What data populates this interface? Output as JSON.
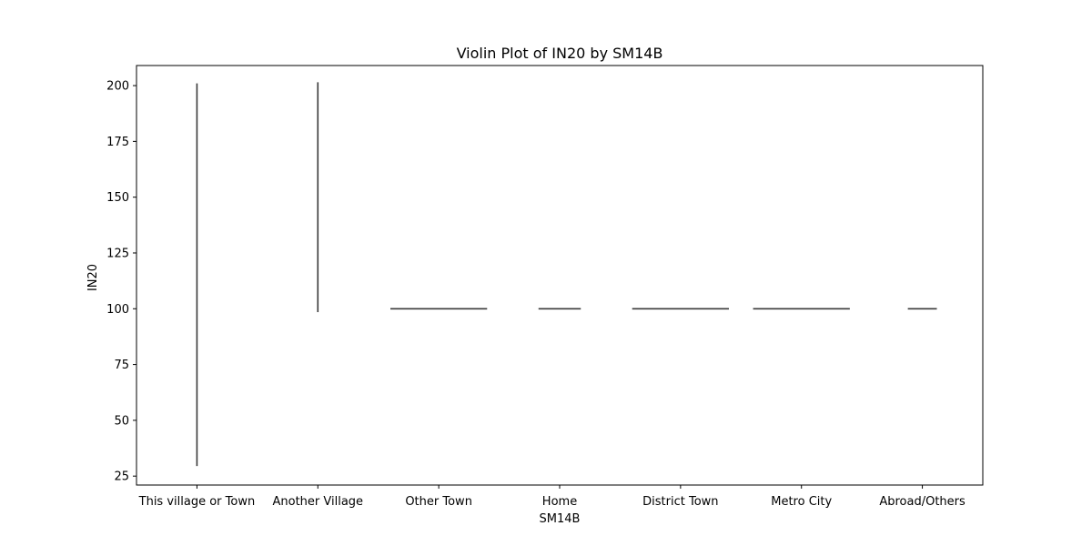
{
  "chart_data": {
    "type": "violin",
    "title": "Violin Plot of IN20 by SM14B",
    "xlabel": "SM14B",
    "ylabel": "IN20",
    "categories": [
      "This village or Town",
      "Another Village",
      "Other Town",
      "Home",
      "District Town",
      "Metro City",
      "Abroad/Others"
    ],
    "yticks": [
      25,
      50,
      75,
      100,
      125,
      150,
      175,
      200
    ],
    "ylim": [
      21,
      209
    ],
    "grid": false,
    "legend": "none",
    "violins": [
      {
        "category": "This village or Town",
        "min": 29.5,
        "max": 201,
        "value": null
      },
      {
        "category": "Another Village",
        "min": 98.5,
        "max": 201.5,
        "value": null
      },
      {
        "category": "Other Town",
        "min": 100,
        "max": 100,
        "value": 100,
        "spread": 0.8
      },
      {
        "category": "Home",
        "min": 100,
        "max": 100,
        "value": 100,
        "spread": 0.35
      },
      {
        "category": "District Town",
        "min": 100,
        "max": 100,
        "value": 100,
        "spread": 0.8
      },
      {
        "category": "Metro City",
        "min": 100,
        "max": 100,
        "value": 100,
        "spread": 0.8
      },
      {
        "category": "Abroad/Others",
        "min": 100,
        "max": 100,
        "value": 100,
        "spread": 0.24
      }
    ],
    "line_color": "#3a3a3a"
  }
}
